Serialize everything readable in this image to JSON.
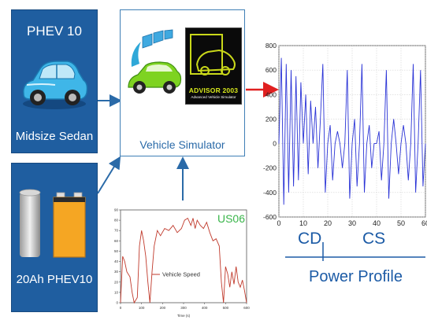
{
  "vehicle_panel": {
    "title": "PHEV 10",
    "caption": "Midsize Sedan",
    "icon": "car-icon"
  },
  "battery_panel": {
    "caption": "20Ah PHEV10",
    "icons": [
      "battery-cell-icon",
      "battery-pack-icon"
    ]
  },
  "simulator": {
    "label": "Vehicle Simulator",
    "logo_title": "ADVISOR 2003",
    "logo_subtitle": "Advanced Vehicle Simulator"
  },
  "speed_chart": {
    "cycle_label": "US06",
    "legend": "Vehicle Speed",
    "xlabel": "Time (s)"
  },
  "power_profile": {
    "cd_label": "CD",
    "cs_label": "CS",
    "title": "Power Profile"
  },
  "colors": {
    "panel_blue": "#1f5ea0",
    "arrow_blue": "#2a6aa8",
    "arrow_red": "#e02020",
    "speed_line": "#c0392b",
    "power_line": "#2a33d6",
    "cycle_green": "#39b54a"
  },
  "chart_data": [
    {
      "type": "line",
      "title": "",
      "xlabel": "Time (s)",
      "ylabel": "",
      "xlim": [
        0,
        600
      ],
      "ylim": [
        0,
        90
      ],
      "x_ticks": [
        0,
        100,
        200,
        300,
        400,
        500,
        600
      ],
      "y_ticks": [
        0,
        10,
        20,
        30,
        40,
        50,
        60,
        70,
        80,
        90
      ],
      "grid": false,
      "legend_position": "bottom-left",
      "series": [
        {
          "name": "Vehicle Speed",
          "x": [
            0,
            10,
            20,
            30,
            45,
            55,
            65,
            80,
            90,
            100,
            110,
            120,
            130,
            140,
            150,
            160,
            175,
            190,
            210,
            230,
            250,
            270,
            290,
            305,
            320,
            335,
            345,
            355,
            365,
            380,
            395,
            410,
            425,
            440,
            455,
            470,
            480,
            490,
            500,
            510,
            520,
            530,
            540,
            550,
            560,
            570,
            580,
            590,
            600
          ],
          "y": [
            0,
            45,
            40,
            30,
            25,
            10,
            0,
            5,
            55,
            70,
            60,
            45,
            20,
            0,
            30,
            55,
            70,
            65,
            72,
            70,
            75,
            68,
            72,
            80,
            82,
            75,
            82,
            72,
            80,
            75,
            72,
            78,
            68,
            60,
            62,
            55,
            20,
            0,
            35,
            28,
            15,
            30,
            18,
            35,
            20,
            15,
            22,
            12,
            0
          ]
        }
      ]
    },
    {
      "type": "line",
      "title": "",
      "xlabel": "",
      "ylabel": "",
      "xlim": [
        0,
        60
      ],
      "ylim": [
        -600,
        800
      ],
      "x_ticks": [
        0,
        10,
        20,
        30,
        40,
        50,
        60
      ],
      "y_ticks": [
        -600,
        -400,
        -200,
        0,
        200,
        400,
        600,
        800
      ],
      "grid": true,
      "series": [
        {
          "name": "",
          "description_points": [
            [
              0,
              0
            ],
            [
              1,
              700
            ],
            [
              2,
              -500
            ],
            [
              3,
              650
            ],
            [
              4,
              -400
            ],
            [
              5,
              600
            ],
            [
              6,
              -350
            ],
            [
              7,
              550
            ],
            [
              8,
              -300
            ],
            [
              9,
              500
            ],
            [
              10,
              0
            ],
            [
              11,
              400
            ],
            [
              12,
              -250
            ],
            [
              13,
              350
            ],
            [
              14,
              0
            ],
            [
              15,
              300
            ],
            [
              16,
              -200
            ],
            [
              17,
              200
            ],
            [
              18,
              650
            ],
            [
              19,
              -400
            ],
            [
              20,
              0
            ],
            [
              21,
              150
            ],
            [
              22,
              -300
            ],
            [
              23,
              0
            ],
            [
              24,
              100
            ],
            [
              25,
              0
            ],
            [
              26,
              -200
            ],
            [
              27,
              0
            ],
            [
              28,
              600
            ],
            [
              29,
              -450
            ],
            [
              30,
              0
            ],
            [
              31,
              200
            ],
            [
              32,
              -350
            ],
            [
              33,
              0
            ],
            [
              34,
              650
            ],
            [
              35,
              -400
            ],
            [
              36,
              0
            ],
            [
              37,
              150
            ],
            [
              38,
              -200
            ],
            [
              39,
              0
            ],
            [
              40,
              0
            ],
            [
              41,
              100
            ],
            [
              42,
              -300
            ],
            [
              43,
              0
            ],
            [
              44,
              600
            ],
            [
              45,
              -450
            ],
            [
              46,
              0
            ],
            [
              47,
              200
            ],
            [
              48,
              0
            ],
            [
              49,
              -250
            ],
            [
              50,
              0
            ],
            [
              51,
              150
            ],
            [
              52,
              0
            ],
            [
              53,
              -300
            ],
            [
              54,
              0
            ],
            [
              55,
              650
            ],
            [
              56,
              -400
            ],
            [
              57,
              0
            ],
            [
              58,
              600
            ],
            [
              59,
              -350
            ],
            [
              60,
              0
            ]
          ]
        }
      ]
    }
  ]
}
